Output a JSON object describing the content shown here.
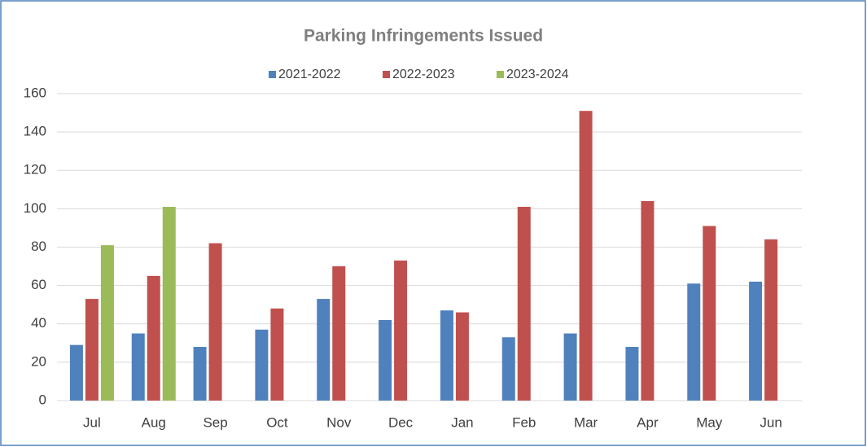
{
  "chart_data": {
    "type": "bar",
    "title": "Parking Infringements  Issued",
    "categories": [
      "Jul",
      "Aug",
      "Sep",
      "Oct",
      "Nov",
      "Dec",
      "Jan",
      "Feb",
      "Mar",
      "Apr",
      "May",
      "Jun"
    ],
    "series": [
      {
        "name": "2021-2022",
        "color": "#4f81bd",
        "values": [
          29,
          35,
          28,
          37,
          53,
          42,
          47,
          33,
          35,
          28,
          61,
          62
        ]
      },
      {
        "name": "2022-2023",
        "color": "#c0504d",
        "values": [
          53,
          65,
          82,
          48,
          70,
          73,
          46,
          101,
          151,
          104,
          91,
          84
        ]
      },
      {
        "name": "2023-2024",
        "color": "#9bbb59",
        "values": [
          81,
          101,
          null,
          null,
          null,
          null,
          null,
          null,
          null,
          null,
          null,
          null
        ]
      }
    ],
    "ylim": [
      0,
      160
    ],
    "yticks": [
      0,
      20,
      40,
      60,
      80,
      100,
      120,
      140,
      160
    ],
    "grid": true,
    "legend": "top"
  }
}
